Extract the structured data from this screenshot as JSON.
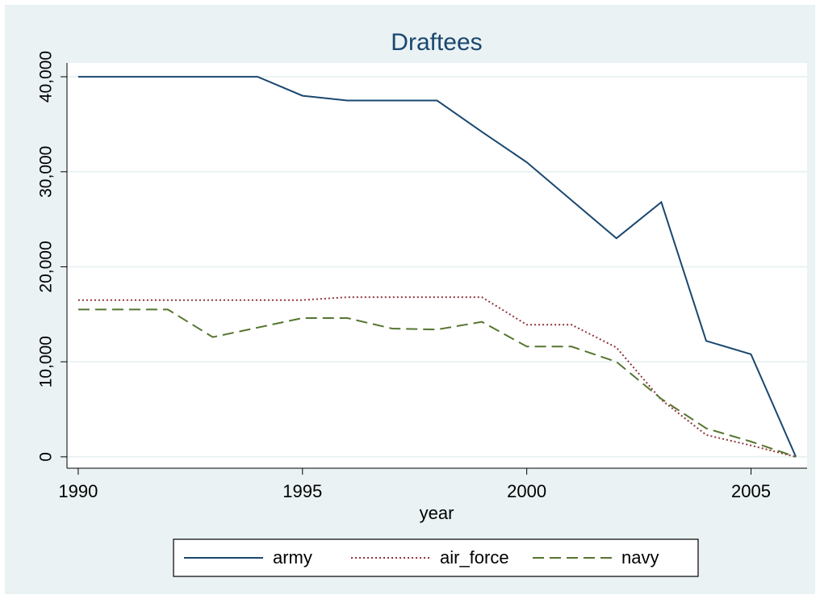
{
  "chart_data": {
    "type": "line",
    "title": "Draftees",
    "xlabel": "year",
    "x": [
      1990,
      1991,
      1992,
      1993,
      1994,
      1995,
      1996,
      1997,
      1998,
      1999,
      2000,
      2001,
      2002,
      2003,
      2004,
      2005,
      2006
    ],
    "series": [
      {
        "name": "army",
        "color": "#1a476f",
        "dash": "solid",
        "values": [
          40000,
          40000,
          40000,
          40000,
          40000,
          38000,
          37500,
          37500,
          37500,
          34200,
          31000,
          27000,
          23000,
          26800,
          12200,
          10800,
          0
        ]
      },
      {
        "name": "air_force",
        "color": "#90353b",
        "dash": "dotted",
        "values": [
          16500,
          16500,
          16500,
          16500,
          16500,
          16500,
          16800,
          16800,
          16800,
          16800,
          13900,
          13900,
          11500,
          6000,
          2300,
          1200,
          0
        ]
      },
      {
        "name": "navy",
        "color": "#55752f",
        "dash": "dashed",
        "values": [
          15500,
          15500,
          15500,
          12600,
          13600,
          14600,
          14600,
          13500,
          13400,
          14200,
          11600,
          11600,
          10000,
          6100,
          3000,
          1600,
          0
        ]
      }
    ],
    "xlim": [
      1989.75,
      2006.25
    ],
    "xticks": [
      1990,
      1995,
      2000,
      2005
    ],
    "ylim": [
      -1200,
      41450
    ],
    "yticks": [
      0,
      {
        "value": 10000,
        "label": "10,000"
      },
      {
        "value": 20000,
        "label": "20,000"
      },
      {
        "value": 30000,
        "label": "30,000"
      },
      {
        "value": 40000,
        "label": "40,000"
      }
    ],
    "grid": true,
    "legend": "bottom"
  }
}
